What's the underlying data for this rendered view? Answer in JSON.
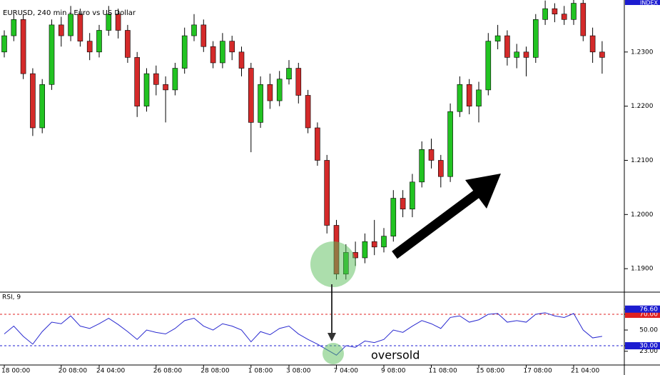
{
  "chart_data": [
    {
      "type": "candlestick",
      "title": "EURUSD, 240 min - Euro vs US Dollar",
      "axis_tag": "INDEX",
      "categories": [
        "18 00:00",
        null,
        null,
        null,
        null,
        null,
        "20 08:00",
        null,
        null,
        null,
        "24 04:00",
        null,
        null,
        null,
        null,
        null,
        "26 08:00",
        null,
        null,
        null,
        null,
        "28 08:00",
        null,
        null,
        null,
        null,
        "1 08:00",
        null,
        null,
        null,
        "3 08:00",
        null,
        null,
        null,
        null,
        "7 04:00",
        null,
        null,
        null,
        null,
        "9 08:00",
        null,
        null,
        null,
        null,
        "11 08:00",
        null,
        null,
        null,
        null,
        "15 08:00",
        null,
        null,
        null,
        null,
        "17 08:00",
        null,
        null,
        null,
        null,
        "21 04:00",
        null,
        null,
        null
      ],
      "open": [
        1.23,
        1.233,
        1.236,
        1.226,
        1.216,
        1.224,
        1.235,
        1.233,
        1.237,
        1.232,
        1.23,
        1.234,
        1.237,
        1.234,
        1.229,
        1.22,
        1.226,
        1.224,
        1.223,
        1.227,
        1.233,
        1.235,
        1.231,
        1.228,
        1.232,
        1.23,
        1.227,
        1.217,
        1.224,
        1.221,
        1.225,
        1.227,
        1.222,
        1.216,
        1.21,
        1.198,
        1.189,
        1.193,
        1.192,
        1.195,
        1.194,
        1.196,
        1.203,
        1.201,
        1.206,
        1.212,
        1.21,
        1.207,
        1.219,
        1.224,
        1.22,
        1.223,
        1.232,
        1.233,
        1.229,
        1.23,
        1.229,
        1.236,
        1.238,
        1.237,
        1.236,
        1.239,
        1.233,
        1.23
      ],
      "high": [
        1.234,
        1.237,
        1.237,
        1.227,
        1.225,
        1.236,
        1.2365,
        1.2385,
        1.238,
        1.2335,
        1.235,
        1.2385,
        1.238,
        1.235,
        1.23,
        1.227,
        1.2275,
        1.2255,
        1.228,
        1.2345,
        1.237,
        1.236,
        1.232,
        1.2335,
        1.233,
        1.231,
        1.228,
        1.2255,
        1.226,
        1.2265,
        1.2285,
        1.228,
        1.223,
        1.217,
        1.211,
        1.199,
        1.1945,
        1.195,
        1.1965,
        1.199,
        1.1975,
        1.2045,
        1.2045,
        1.2075,
        1.2135,
        1.214,
        1.211,
        1.2205,
        1.2255,
        1.225,
        1.2245,
        1.2335,
        1.235,
        1.234,
        1.2315,
        1.231,
        1.237,
        1.2395,
        1.239,
        1.2385,
        1.2396,
        1.2396,
        1.2345,
        1.232
      ],
      "low": [
        1.229,
        1.232,
        1.225,
        1.2145,
        1.215,
        1.223,
        1.231,
        1.232,
        1.231,
        1.2285,
        1.229,
        1.233,
        1.2325,
        1.228,
        1.218,
        1.219,
        1.222,
        1.217,
        1.222,
        1.226,
        1.232,
        1.23,
        1.227,
        1.227,
        1.2285,
        1.2255,
        1.2115,
        1.216,
        1.2195,
        1.22,
        1.224,
        1.2205,
        1.215,
        1.209,
        1.1965,
        1.188,
        1.188,
        1.1905,
        1.191,
        1.1925,
        1.193,
        1.195,
        1.1995,
        1.1995,
        1.205,
        1.2085,
        1.205,
        1.206,
        1.218,
        1.2185,
        1.217,
        1.222,
        1.2305,
        1.2275,
        1.227,
        1.2255,
        1.228,
        1.235,
        1.2355,
        1.235,
        1.235,
        1.232,
        1.228,
        1.226
      ],
      "close": [
        1.233,
        1.236,
        1.226,
        1.216,
        1.224,
        1.235,
        1.233,
        1.237,
        1.232,
        1.23,
        1.234,
        1.237,
        1.234,
        1.229,
        1.22,
        1.226,
        1.224,
        1.223,
        1.227,
        1.233,
        1.235,
        1.231,
        1.228,
        1.232,
        1.23,
        1.227,
        1.217,
        1.224,
        1.221,
        1.225,
        1.227,
        1.222,
        1.216,
        1.21,
        1.198,
        1.189,
        1.193,
        1.192,
        1.195,
        1.194,
        1.196,
        1.203,
        1.201,
        1.206,
        1.212,
        1.21,
        1.207,
        1.219,
        1.224,
        1.22,
        1.223,
        1.232,
        1.233,
        1.229,
        1.23,
        1.229,
        1.236,
        1.238,
        1.237,
        1.236,
        1.239,
        1.233,
        1.23,
        1.229
      ],
      "up_color": "#22c322",
      "down_color": "#d42a2a",
      "ylim": [
        1.1858,
        1.2396
      ],
      "yticks": [
        {
          "value": 1.19,
          "label": "1.1900"
        },
        {
          "value": 1.2,
          "label": "1.2000"
        },
        {
          "value": 1.21,
          "label": "1.2100"
        },
        {
          "value": 1.22,
          "label": "1.2200"
        },
        {
          "value": 1.23,
          "label": "1.2300"
        }
      ]
    },
    {
      "type": "line",
      "title": "RSI, 9",
      "series": [
        {
          "color": "#2a2ad0",
          "values": [
            45,
            55,
            42,
            32,
            48,
            60,
            58,
            68,
            55,
            52,
            58,
            65,
            57,
            48,
            38,
            50,
            47,
            45,
            52,
            62,
            65,
            55,
            50,
            58,
            55,
            50,
            35,
            48,
            44,
            52,
            55,
            45,
            38,
            32,
            25,
            18,
            30,
            28,
            36,
            34,
            38,
            50,
            47,
            55,
            62,
            58,
            52,
            66,
            68,
            60,
            63,
            70,
            71,
            60,
            62,
            60,
            70,
            72,
            68,
            66,
            71,
            50,
            40,
            42
          ]
        }
      ],
      "ylim": [
        6.4,
        97.3
      ],
      "yticks": [
        {
          "value": 23,
          "label": "23.00"
        },
        {
          "value": 30,
          "label": "30.00",
          "box_color": "#1c1cd0"
        },
        {
          "value": 50,
          "label": "50.00"
        },
        {
          "value": 70,
          "label": "70.00",
          "box_color": "#e02020"
        },
        {
          "value": 76.6,
          "label": "76.60",
          "box_color": "#1c1cd0"
        }
      ],
      "levels": [
        {
          "value": 70,
          "color": "#e02020"
        },
        {
          "value": 30,
          "color": "#1c1cd0"
        }
      ],
      "annotation": "oversold"
    }
  ]
}
